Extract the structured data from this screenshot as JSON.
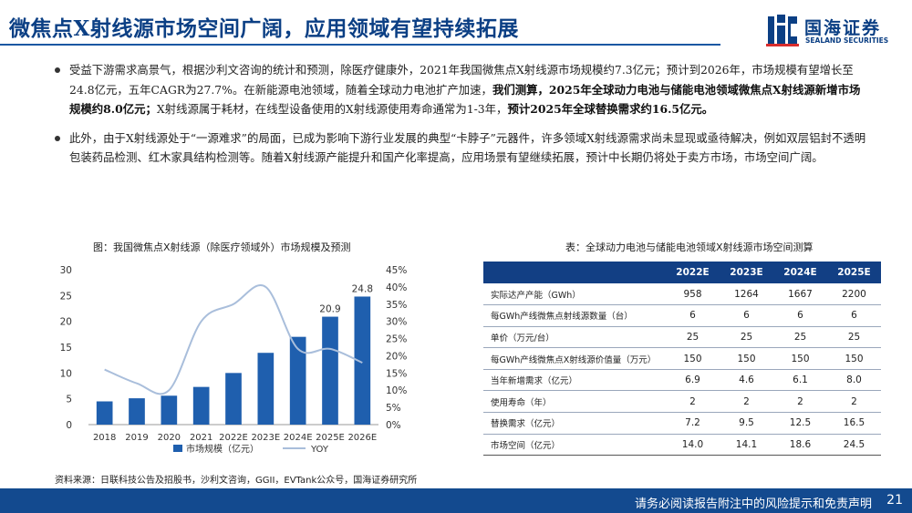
{
  "title": "微焦点X射线源市场空间广阔，应用领域有望持续拓展",
  "logo": {
    "cn": "国海证券",
    "en": "SEALAND SECURITIES"
  },
  "bullet1": {
    "p1": "受益下游需求高景气，根据沙利文咨询的统计和预测，除医疗健康外，2021年我国微焦点X射线源市场规模约7.3亿元；预计到2026年，市场规模有望增长至24.8亿元，五年CAGR为27.7%。在新能源电池领域，随着全球动力电池扩产加速，",
    "b1": "我们测算，2025年全球动力电池与储能电池领域微焦点X射线源新增市场规模约8.0亿元；",
    "p2": "X射线源属于耗材，在线型设备使用的X射线源使用寿命通常为1-3年，",
    "b2": "预计2025年全球替换需求约16.5亿元。"
  },
  "bullet2": {
    "text": "此外，由于X射线源处于“一源难求”的局面，已成为影响下游行业发展的典型“卡脖子”元器件，许多领域X射线源需求尚未显现或亟待解决，例如双层铝封不透明包装药品检测、红木家具结构检测等。随着X射线源产能提升和国产化率提高，应用场景有望继续拓展，预计中长期仍将处于卖方市场，市场空间广阔。"
  },
  "chart_caption": "图：我国微焦点X射线源（除医疗领域外）市场规模及预测",
  "chart_data": {
    "type": "bar",
    "categories": [
      "2018",
      "2019",
      "2020",
      "2021",
      "2022E",
      "2023E",
      "2024E",
      "2025E",
      "2026E"
    ],
    "series": [
      {
        "name": "市场规模（亿元）",
        "type": "bar",
        "axis": "left",
        "values": [
          4.5,
          5.1,
          5.6,
          7.3,
          10.0,
          13.9,
          17.0,
          20.9,
          24.8
        ]
      },
      {
        "name": "YOY",
        "type": "line",
        "axis": "right",
        "values": [
          16,
          12,
          10,
          30,
          35,
          40,
          22,
          22,
          18
        ]
      }
    ],
    "data_labels": {
      "7": "20.9",
      "8": "24.8"
    },
    "left_axis": {
      "ylim": [
        0,
        30
      ],
      "ticks": [
        "0",
        "5",
        "10",
        "15",
        "20",
        "25",
        "30"
      ]
    },
    "right_axis": {
      "ylim": [
        0,
        45
      ],
      "ticks": [
        "0%",
        "5%",
        "10%",
        "15%",
        "20%",
        "25%",
        "30%",
        "35%",
        "40%",
        "45%"
      ]
    },
    "colors": {
      "bar": "#1f5fae",
      "line": "#a9bedb"
    },
    "legend_position": "bottom"
  },
  "source": "资料来源：日联科技公告及招股书，沙利文咨询，GGII，EVTank公众号，国海证券研究所",
  "table": {
    "caption": "表：全球动力电池与储能电池领域X射线源市场空间测算",
    "headers": [
      "",
      "2022E",
      "2023E",
      "2024E",
      "2025E"
    ],
    "rows": [
      {
        "label": "实际达产产能（GWh）",
        "values": [
          "958",
          "1264",
          "1667",
          "2200"
        ]
      },
      {
        "label": "每GWh产线微焦点射线源数量（台）",
        "values": [
          "6",
          "6",
          "6",
          "6"
        ]
      },
      {
        "label": "单价（万元/台）",
        "values": [
          "25",
          "25",
          "25",
          "25"
        ]
      },
      {
        "label": "每GWh产线微焦点X射线源价值量（万元）",
        "values": [
          "150",
          "150",
          "150",
          "150"
        ]
      },
      {
        "label": "当年新增需求（亿元）",
        "values": [
          "6.9",
          "4.6",
          "6.1",
          "8.0"
        ]
      },
      {
        "label": "使用寿命（年）",
        "values": [
          "2",
          "2",
          "2",
          "2"
        ]
      },
      {
        "label": "替换需求（亿元）",
        "values": [
          "7.2",
          "9.5",
          "12.5",
          "16.5"
        ]
      },
      {
        "label": "市场空间（亿元）",
        "values": [
          "14.0",
          "14.1",
          "18.6",
          "24.5"
        ]
      }
    ]
  },
  "footer": {
    "disclaimer": "请务必阅读报告附注中的风险提示和免责声明",
    "page": "21"
  }
}
